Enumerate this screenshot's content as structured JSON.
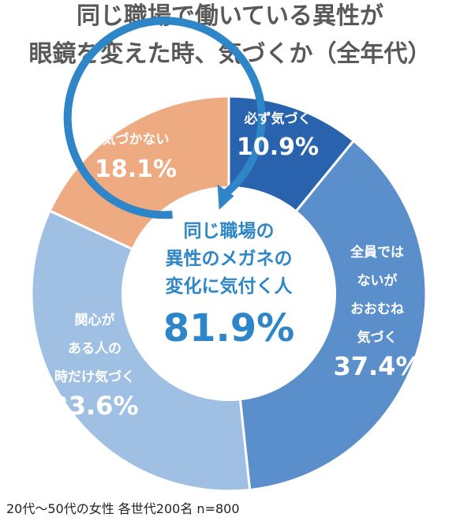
{
  "title_lines": [
    "同じ職場で働いている異性が",
    "眼鏡を変えた時、気づくか（全年代）"
  ],
  "chart_data": {
    "type": "pie",
    "title": "同じ職場で働いている異性が眼鏡を変えた時、気づくか（全年代）",
    "slices": [
      {
        "label_lines": [
          "必ず気づく"
        ],
        "value": 10.9,
        "value_label": "10.9%",
        "color": "#2a63ad"
      },
      {
        "label_lines": [
          "全員では",
          "ないが",
          "おおむね",
          "気づく"
        ],
        "value": 37.4,
        "value_label": "37.4%",
        "color": "#5b8fcb"
      },
      {
        "label_lines": [
          "関心が",
          "ある人の",
          "時だけ気づく"
        ],
        "value": 33.6,
        "value_label": "33.6%",
        "color": "#9fc0e3"
      },
      {
        "label_lines": [
          "気づかない"
        ],
        "value": 18.1,
        "value_label": "18.1%",
        "color": "#eeaa80"
      }
    ],
    "center": {
      "lines": [
        "同じ職場の",
        "異性のメガネの",
        "変化に気付く人"
      ],
      "value_label": "81.9%",
      "color": "#2e86c8"
    }
  },
  "note": "20代～50代の女性 各世代200名 n=800"
}
